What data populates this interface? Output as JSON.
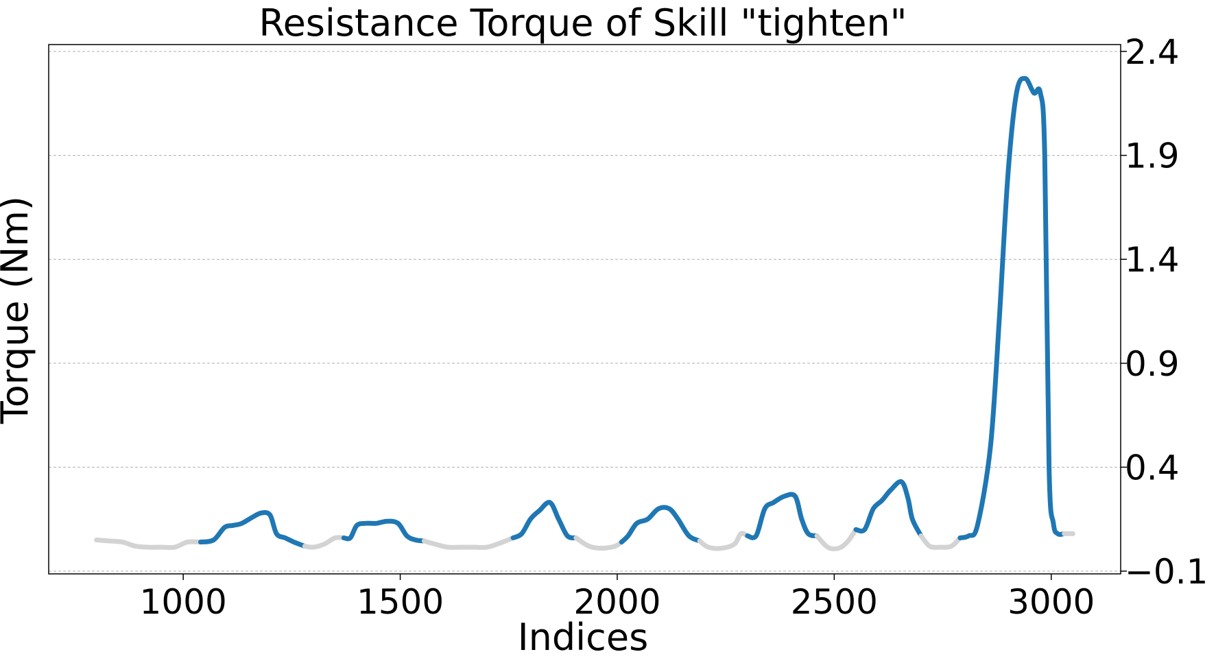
{
  "chart_data": {
    "type": "line",
    "title": "Resistance Torque of Skill \"tighten\"",
    "xlabel": "Indices",
    "ylabel": "Torque (Nm)",
    "xlim": [
      690,
      3160
    ],
    "ylim": [
      -0.1,
      2.4
    ],
    "xticks": [
      1000,
      1500,
      2000,
      2500,
      3000
    ],
    "yticks": [
      -0.1,
      0.4,
      0.9,
      1.4,
      1.9,
      2.4
    ],
    "ytick_labels": [
      "−0.1",
      "0.4",
      "0.9",
      "1.4",
      "1.9",
      "2.4"
    ],
    "y_axis_side": "right",
    "grid": "horizontal, dashed",
    "colors": {
      "active": "#1f77b4",
      "idle": "#d3d3d3"
    },
    "series": [
      {
        "x": [
          800,
          830,
          860,
          890,
          920,
          950,
          980,
          1010,
          1040,
          1070,
          1095,
          1115,
          1135,
          1160,
          1180,
          1200,
          1215,
          1235,
          1255,
          1280,
          1300,
          1325,
          1350,
          1370,
          1385,
          1400,
          1420,
          1445,
          1470,
          1495,
          1515,
          1535,
          1555,
          1580,
          1610,
          1640,
          1670,
          1700,
          1730,
          1760,
          1780,
          1800,
          1820,
          1845,
          1865,
          1885,
          1905,
          1935,
          1965,
          1995,
          2010,
          2025,
          2045,
          2070,
          2095,
          2120,
          2140,
          2165,
          2190,
          2210,
          2240,
          2270,
          2285,
          2300,
          2320,
          2340,
          2360,
          2385,
          2410,
          2425,
          2440,
          2460,
          2485,
          2510,
          2530,
          2550,
          2570,
          2590,
          2610,
          2630,
          2655,
          2670,
          2680,
          2700,
          2720,
          2745,
          2770,
          2790,
          2810,
          2830,
          2860,
          2880,
          2900,
          2920,
          2940,
          2960,
          2975,
          2985,
          2995,
          3005,
          3015,
          3030,
          3050
        ],
        "y": [
          0.05,
          0.045,
          0.04,
          0.02,
          0.015,
          0.015,
          0.015,
          0.04,
          0.04,
          0.05,
          0.11,
          0.12,
          0.13,
          0.16,
          0.18,
          0.17,
          0.08,
          0.06,
          0.04,
          0.02,
          0.015,
          0.03,
          0.06,
          0.06,
          0.06,
          0.12,
          0.13,
          0.13,
          0.14,
          0.13,
          0.07,
          0.05,
          0.045,
          0.03,
          0.015,
          0.015,
          0.015,
          0.015,
          0.035,
          0.06,
          0.08,
          0.15,
          0.19,
          0.23,
          0.15,
          0.07,
          0.06,
          0.02,
          0.01,
          0.02,
          0.04,
          0.07,
          0.13,
          0.15,
          0.2,
          0.2,
          0.15,
          0.07,
          0.045,
          0.015,
          0.01,
          0.03,
          0.08,
          0.07,
          0.07,
          0.2,
          0.23,
          0.26,
          0.26,
          0.15,
          0.08,
          0.07,
          0.015,
          0.01,
          0.04,
          0.1,
          0.1,
          0.2,
          0.24,
          0.29,
          0.33,
          0.25,
          0.15,
          0.07,
          0.02,
          0.015,
          0.02,
          0.06,
          0.07,
          0.12,
          0.5,
          1.1,
          1.8,
          2.2,
          2.27,
          2.2,
          2.2,
          1.9,
          0.4,
          0.13,
          0.08,
          0.08,
          0.08
        ],
        "state": [
          "idle",
          "idle",
          "idle",
          "idle",
          "idle",
          "idle",
          "idle",
          "idle",
          "active",
          "active",
          "active",
          "active",
          "active",
          "active",
          "active",
          "active",
          "active",
          "active",
          "active",
          "idle",
          "idle",
          "idle",
          "idle",
          "active",
          "active",
          "active",
          "active",
          "active",
          "active",
          "active",
          "active",
          "active",
          "idle",
          "idle",
          "idle",
          "idle",
          "idle",
          "idle",
          "idle",
          "active",
          "active",
          "active",
          "active",
          "active",
          "active",
          "active",
          "idle",
          "idle",
          "idle",
          "idle",
          "active",
          "active",
          "active",
          "active",
          "active",
          "active",
          "active",
          "active",
          "idle",
          "idle",
          "idle",
          "idle",
          "idle",
          "active",
          "active",
          "active",
          "active",
          "active",
          "active",
          "active",
          "active",
          "idle",
          "idle",
          "idle",
          "idle",
          "active",
          "active",
          "active",
          "active",
          "active",
          "active",
          "active",
          "active",
          "idle",
          "idle",
          "idle",
          "idle",
          "active",
          "active",
          "active",
          "active",
          "active",
          "active",
          "active",
          "active",
          "active",
          "active",
          "active",
          "active",
          "active",
          "active",
          "idle",
          "idle"
        ]
      }
    ]
  }
}
